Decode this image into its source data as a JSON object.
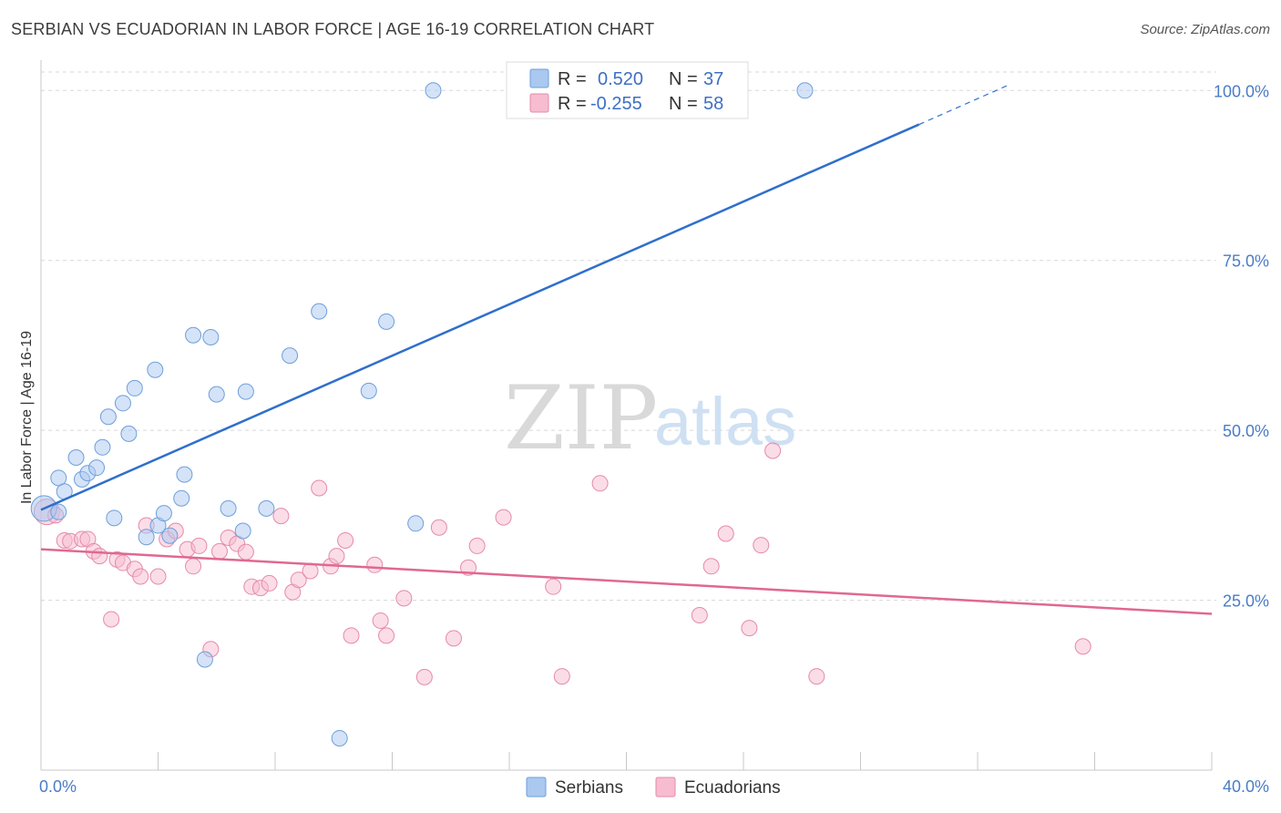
{
  "title": "SERBIAN VS ECUADORIAN IN LABOR FORCE | AGE 16-19 CORRELATION CHART",
  "source": "Source: ZipAtlas.com",
  "watermark": {
    "zip": "ZIP",
    "atlas": "atlas"
  },
  "colors": {
    "serbians_fill": "#aac8f0",
    "serbians_stroke": "#6e9fdc",
    "serbians_line": "#2f6fcc",
    "ecuadorians_fill": "#f7bcd0",
    "ecuadorians_stroke": "#e58aaa",
    "ecuadorians_line": "#e06892",
    "tick_text": "#4a7cc7",
    "grid": "#d8d8d8"
  },
  "legend": {
    "r_label": "R =",
    "n_label": "N =",
    "serbians": {
      "r": "0.520",
      "n": "37"
    },
    "ecuadorians": {
      "r": "-0.255",
      "n": "58"
    }
  },
  "chart_data": {
    "type": "scatter",
    "title": "SERBIAN VS ECUADORIAN IN LABOR FORCE | AGE 16-19 CORRELATION CHART",
    "xlabel": "",
    "ylabel": "In Labor Force | Age 16-19",
    "xlim": [
      0,
      40
    ],
    "ylim": [
      0,
      105
    ],
    "x_ticks": [
      {
        "value": 0,
        "label": "0.0%"
      },
      {
        "value": 40,
        "label": "40.0%"
      }
    ],
    "y_ticks": [
      {
        "value": 25,
        "label": "25.0%"
      },
      {
        "value": 50,
        "label": "50.0%"
      },
      {
        "value": 75,
        "label": "75.0%"
      },
      {
        "value": 100,
        "label": "100.0%"
      }
    ],
    "grid": true,
    "legend_position": "top-center",
    "series": [
      {
        "name": "Serbians",
        "color": "#aac8f0",
        "trend": {
          "x0": 0,
          "y0": 38.3,
          "x1": 30,
          "y1": 95.0,
          "dashed_to_x": 33.0,
          "dashed_to_y": 100.7
        },
        "points": [
          [
            0.1,
            38.5
          ],
          [
            0.6,
            38.0
          ],
          [
            0.6,
            43.0
          ],
          [
            0.8,
            41.0
          ],
          [
            1.2,
            46.0
          ],
          [
            1.4,
            42.8
          ],
          [
            1.6,
            43.7
          ],
          [
            1.9,
            44.5
          ],
          [
            2.1,
            47.5
          ],
          [
            2.3,
            52.0
          ],
          [
            2.5,
            37.1
          ],
          [
            2.8,
            54.0
          ],
          [
            3.0,
            49.5
          ],
          [
            3.2,
            56.2
          ],
          [
            3.6,
            34.3
          ],
          [
            3.9,
            58.9
          ],
          [
            4.0,
            36.0
          ],
          [
            4.2,
            37.8
          ],
          [
            4.4,
            34.5
          ],
          [
            4.8,
            40.0
          ],
          [
            4.9,
            43.5
          ],
          [
            5.2,
            64.0
          ],
          [
            5.6,
            16.3
          ],
          [
            5.8,
            63.7
          ],
          [
            6.0,
            55.3
          ],
          [
            6.4,
            38.5
          ],
          [
            6.9,
            35.2
          ],
          [
            7.0,
            55.7
          ],
          [
            7.7,
            38.5
          ],
          [
            8.5,
            61.0
          ],
          [
            9.5,
            67.5
          ],
          [
            10.2,
            4.7
          ],
          [
            11.2,
            55.8
          ],
          [
            11.8,
            66.0
          ],
          [
            12.8,
            36.3
          ],
          [
            13.4,
            100.0
          ],
          [
            26.1,
            100.0
          ]
        ]
      },
      {
        "name": "Ecuadorians",
        "color": "#f7bcd0",
        "trend": {
          "x0": 0,
          "y0": 32.5,
          "x1": 40,
          "y1": 23.0
        },
        "points": [
          [
            0.2,
            38.0
          ],
          [
            0.5,
            37.5
          ],
          [
            0.8,
            33.8
          ],
          [
            1.0,
            33.7
          ],
          [
            1.4,
            34.0
          ],
          [
            1.6,
            34.0
          ],
          [
            1.8,
            32.2
          ],
          [
            2.0,
            31.5
          ],
          [
            2.4,
            22.2
          ],
          [
            2.6,
            31.0
          ],
          [
            2.8,
            30.5
          ],
          [
            3.2,
            29.6
          ],
          [
            3.4,
            28.5
          ],
          [
            3.6,
            36.0
          ],
          [
            4.0,
            28.5
          ],
          [
            4.3,
            34.0
          ],
          [
            4.6,
            35.2
          ],
          [
            5.0,
            32.5
          ],
          [
            5.2,
            30.0
          ],
          [
            5.4,
            33.0
          ],
          [
            5.8,
            17.8
          ],
          [
            6.1,
            32.2
          ],
          [
            6.4,
            34.2
          ],
          [
            6.7,
            33.3
          ],
          [
            7.0,
            32.1
          ],
          [
            7.2,
            27.0
          ],
          [
            7.5,
            26.8
          ],
          [
            7.8,
            27.5
          ],
          [
            8.2,
            37.4
          ],
          [
            8.6,
            26.2
          ],
          [
            8.8,
            28.0
          ],
          [
            9.2,
            29.3
          ],
          [
            9.5,
            41.5
          ],
          [
            9.9,
            30.0
          ],
          [
            10.1,
            31.5
          ],
          [
            10.4,
            33.8
          ],
          [
            10.6,
            19.8
          ],
          [
            11.4,
            30.2
          ],
          [
            11.6,
            22.0
          ],
          [
            11.8,
            19.8
          ],
          [
            12.4,
            25.3
          ],
          [
            13.1,
            13.7
          ],
          [
            13.6,
            35.7
          ],
          [
            14.1,
            19.4
          ],
          [
            14.6,
            29.8
          ],
          [
            14.9,
            33.0
          ],
          [
            15.8,
            37.2
          ],
          [
            17.5,
            27.0
          ],
          [
            17.8,
            13.8
          ],
          [
            19.1,
            42.2
          ],
          [
            22.5,
            22.8
          ],
          [
            22.9,
            30.0
          ],
          [
            23.4,
            34.8
          ],
          [
            24.2,
            20.9
          ],
          [
            24.6,
            33.1
          ],
          [
            25.0,
            47.0
          ],
          [
            26.5,
            13.8
          ],
          [
            35.6,
            18.2
          ]
        ]
      }
    ]
  }
}
